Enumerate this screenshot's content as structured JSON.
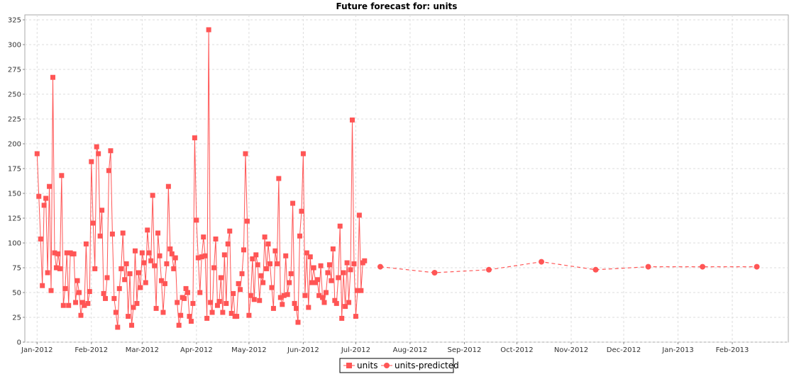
{
  "chart_data": {
    "type": "line",
    "title": "Future forecast for: units",
    "xlabel": "",
    "ylabel": "",
    "x_ticks": [
      "Jan-2012",
      "Feb-2012",
      "Mar-2012",
      "Apr-2012",
      "May-2012",
      "Jun-2012",
      "Jul-2012",
      "Aug-2012",
      "Sep-2012",
      "Oct-2012",
      "Nov-2012",
      "Dec-2012",
      "Jan-2013",
      "Feb-2013"
    ],
    "y_ticks": [
      0,
      25,
      50,
      75,
      100,
      125,
      150,
      175,
      200,
      225,
      250,
      275,
      300,
      325
    ],
    "ylim": [
      0,
      330
    ],
    "xlim": [
      "2011-12-25",
      "2013-03-05"
    ],
    "grid": true,
    "legend_position": "bottom",
    "series": [
      {
        "name": "units",
        "color": "#ff5555",
        "style": "solid",
        "marker": "square",
        "start_date": "2012-01-01",
        "step_days": 1,
        "values": [
          190,
          147,
          104,
          57,
          138,
          145,
          70,
          157,
          52,
          267,
          90,
          75,
          89,
          74,
          168,
          37,
          54,
          90,
          37,
          90,
          89,
          89,
          40,
          62,
          50,
          27,
          40,
          37,
          99,
          39,
          51,
          182,
          120,
          74,
          197,
          190,
          107,
          133,
          49,
          44,
          65,
          173,
          193,
          109,
          44,
          30,
          15,
          54,
          74,
          110,
          63,
          79,
          26,
          69,
          17,
          35,
          92,
          39,
          70,
          55,
          90,
          80,
          60,
          113,
          90,
          82,
          148,
          77,
          34,
          110,
          87,
          62,
          30,
          59,
          79,
          157,
          94,
          89,
          74,
          85,
          40,
          17,
          27,
          45,
          44,
          54,
          50,
          26,
          21,
          39,
          206,
          123,
          85,
          50,
          86,
          106,
          87,
          24,
          315,
          40,
          30,
          75,
          104,
          37,
          41,
          65,
          30,
          88,
          39,
          99,
          112,
          29,
          49,
          26,
          26,
          59,
          53,
          69,
          93,
          190,
          122,
          27,
          47,
          84,
          43,
          88,
          78,
          42,
          67,
          60,
          106,
          74,
          99,
          79,
          55,
          34,
          92,
          79,
          165,
          45,
          38,
          47,
          87,
          48,
          60,
          69,
          140,
          39,
          34,
          20,
          107,
          132,
          190,
          47,
          90,
          35,
          86,
          60,
          75,
          60,
          63,
          47,
          77,
          45,
          40,
          50,
          70,
          78,
          62,
          94,
          42,
          39,
          65,
          117,
          24,
          70,
          36,
          80,
          40,
          73,
          224,
          79,
          26,
          52,
          128,
          52,
          80,
          82
        ]
      },
      {
        "name": "units-predicted",
        "color": "#ff5555",
        "style": "dashed",
        "marker": "circle",
        "dates": [
          "2012-07-15",
          "2012-08-15",
          "2012-09-15",
          "2012-10-15",
          "2012-11-15",
          "2012-12-15",
          "2013-01-15",
          "2013-02-15"
        ],
        "values": [
          76,
          70,
          73,
          81,
          73,
          76,
          76,
          76
        ]
      }
    ]
  }
}
